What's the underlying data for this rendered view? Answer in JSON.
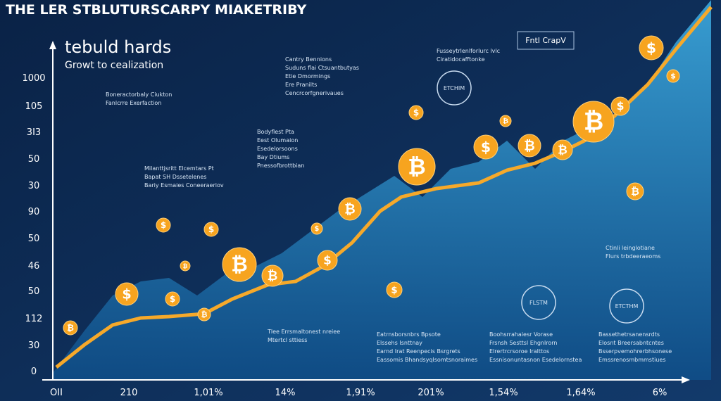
{
  "header": {
    "title": "THE LER STBLUTURSCARPY MIAKETRIBY",
    "heading": "tebuld hards",
    "subheading": "Growt to cealization",
    "badge": "Fntl CrapV"
  },
  "y_axis_labels": [
    "1000",
    "105",
    "3I3",
    "50",
    "30",
    "90",
    "50",
    "46",
    "50",
    "112",
    "30",
    "0"
  ],
  "x_axis_labels": [
    "OII",
    "210",
    "1,01%",
    "14%",
    "1,91%",
    "201%",
    "1,54%",
    "1,64%",
    "6%"
  ],
  "coin_symbols": [
    "₿",
    "$"
  ],
  "callouts": [
    {
      "title": "Boneractorbaly Ciukton",
      "lines": [
        "Fanlcrre Exerfaction"
      ]
    },
    {
      "title": "Milanttjsritt Elcemtars Pt",
      "lines": [
        "Bapat SH Dssetelenes",
        "Bariy Esmaies Coneeraeriov"
      ]
    },
    {
      "title": "Bodyflest Pta",
      "lines": [
        "Eest Olumaion",
        "Esedelorsoons",
        "Bay Dtiums",
        "Pnessofbrottbian"
      ]
    },
    {
      "title": "Cantry Bennions",
      "lines": [
        "Suduns flai Ctsuantbutyas",
        "Etie Dmormings",
        "Ere Pranilts",
        "Cencrcorfgnerivaues"
      ]
    },
    {
      "title": "Fusseytrlenlforlurc lvlc",
      "lines": [
        "Ciratidocafftonke"
      ]
    },
    {
      "title": "Tlee Errsmaltonest nreiee",
      "lines": [
        "Mtertcl sttiess"
      ]
    },
    {
      "title": "Ctinli leinglotiane",
      "lines": [
        "Flurs trbdeeraeoms"
      ]
    },
    {
      "title": "Eatrnsborsnbrs Bpsote",
      "lines": [
        "Elssehs Isnttnay",
        "Earnd Irat Reenpecis Bsrgrets",
        "Eassomis Bhandsyqlsomtsnoraimes"
      ]
    },
    {
      "title": "Boohsrrahaiesr Vorase",
      "lines": [
        "Frsnsh Sesttsl Ehgnlrorn",
        "Elrertrcrsoroe Iralttos",
        "Essnisonuntasnon Esedelornstea"
      ]
    },
    {
      "title": "Bassethetrsanensrdts",
      "lines": [
        "Elosnt Breersabntcntes",
        "Bsserpvemohrerbhsonese",
        "Emssrenosmbmmstiues"
      ]
    }
  ],
  "devices": [
    "ETCHIM",
    "FLSTM",
    "ETCTHM"
  ]
}
